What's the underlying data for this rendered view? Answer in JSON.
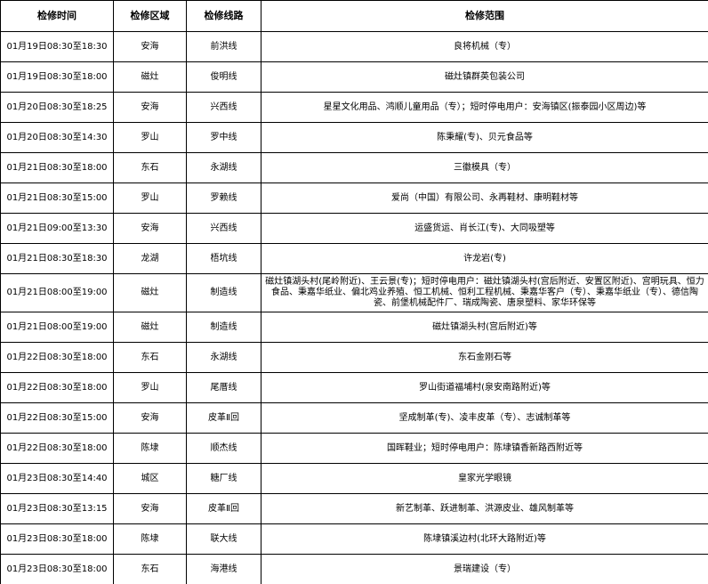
{
  "table": {
    "header": [
      "检修时间",
      "检修区域",
      "检修线路",
      "检修范围"
    ],
    "rows": [
      [
        "01月19日08:30至18:30",
        "安海",
        "前洪线",
        "良将机械（专）"
      ],
      [
        "01月19日08:30至18:00",
        "磁灶",
        "俊明线",
        "磁灶镇群英包装公司"
      ],
      [
        "01月20日08:30至18:25",
        "安海",
        "兴西线",
        "星星文化用品、鸿顺儿童用品（专）；短时停电用户：安海镇区(振泰园小区周边)等"
      ],
      [
        "01月20日08:30至14:30",
        "罗山",
        "罗中线",
        "陈秉耀(专)、贝元食品等"
      ],
      [
        "01月21日08:30至18:00",
        "东石",
        "永湖线",
        "三徽模具（专）"
      ],
      [
        "01月21日08:30至15:00",
        "罗山",
        "罗赖线",
        "爱尚（中国）有限公司、永再鞋材、康明鞋材等"
      ],
      [
        "01月21日09:00至13:30",
        "安海",
        "兴西线",
        "运盛货运、肖长江(专)、大同吸塑等"
      ],
      [
        "01月21日08:30至18:30",
        "龙湖",
        "梧坑线",
        "许龙岩(专)"
      ],
      [
        "01月21日08:00至19:00",
        "磁灶",
        "制造线",
        "磁灶镇湖头村(尾岭附近)、王云景(专)；短时停电用户：磁灶镇湖头村(宫后附近、安置区附近)、宫明玩具、恒力食品、秉嘉华纸业、偏北鸡业养殖、恒工机械、恒利工程机械、秉嘉华客户（专）、秉嘉华纸业（专）、德信陶瓷、前堡机械配件厂、瑞成陶瓷、唐泉塑料、家华环保等"
      ],
      [
        "01月21日08:00至19:00",
        "磁灶",
        "制造线",
        "磁灶镇湖头村(宫后附近)等"
      ],
      [
        "01月22日08:30至18:00",
        "东石",
        "永湖线",
        "东石金刚石等"
      ],
      [
        "01月22日08:30至18:00",
        "罗山",
        "尾厝线",
        "罗山街道福埔村(泉安南路附近)等"
      ],
      [
        "01月22日08:30至15:00",
        "安海",
        "皮革Ⅱ回",
        "坚成制革(专)、凌丰皮革（专）、志诚制革等"
      ],
      [
        "01月22日08:30至18:00",
        "陈埭",
        "顺杰线",
        "国晖鞋业；短时停电用户：陈埭镇香新路西附近等"
      ],
      [
        "01月23日08:30至14:40",
        "城区",
        "糖厂线",
        "皇家光学眼镜"
      ],
      [
        "01月23日08:30至13:15",
        "安海",
        "皮革Ⅱ回",
        "新艺制革、跃进制革、洪源皮业、雄风制革等"
      ],
      [
        "01月23日08:30至18:00",
        "陈埭",
        "联大线",
        "陈埭镇溪边村(北环大路附近)等"
      ],
      [
        "01月23日08:30至18:00",
        "东石",
        "海港线",
        "景瑞建设（专）"
      ]
    ]
  }
}
